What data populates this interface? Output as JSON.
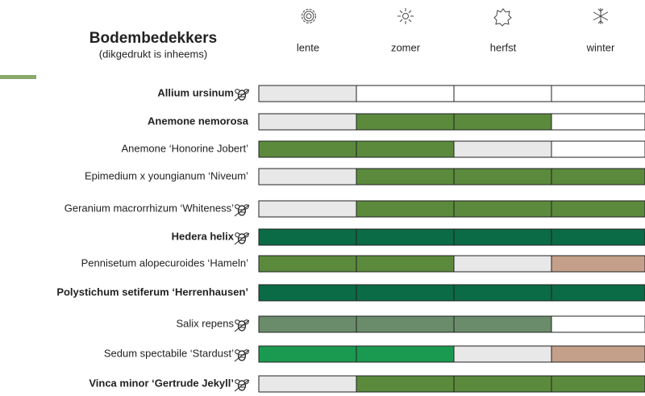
{
  "header": {
    "title": "Bodembedekkers",
    "subtitle": "(dikgedrukt is inheems)"
  },
  "seasons": [
    "lente",
    "zomer",
    "herfst",
    "winter"
  ],
  "rows": [
    {
      "name": "Allium ursinum",
      "bold": true,
      "bee": true,
      "cells": [
        "#e8e8e8",
        "#ffffff",
        "#ffffff",
        "#ffffff"
      ]
    },
    {
      "name": "Anemone nemorosa",
      "bold": true,
      "bee": false,
      "cells": [
        "#e8e8e8",
        "#5b8a3c",
        "#5b8a3c",
        "#ffffff"
      ]
    },
    {
      "name": "Anemone ‘Honorine Jobert’",
      "bold": false,
      "bee": false,
      "cells": [
        "#5b8a3c",
        "#5b8a3c",
        "#e8e8e8",
        "#ffffff"
      ]
    },
    {
      "name": "Epimedium x youngianum ‘Niveum’",
      "bold": false,
      "bee": false,
      "cells": [
        "#e8e8e8",
        "#5b8a3c",
        "#5b8a3c",
        "#5b8a3c"
      ]
    },
    {
      "name": "Geranium macrorrhizum ‘Whiteness’",
      "bold": false,
      "bee": true,
      "cells": [
        "#e8e8e8",
        "#5b8a3c",
        "#5b8a3c",
        "#5b8a3c"
      ]
    },
    {
      "name": "Hedera helix",
      "bold": true,
      "bee": true,
      "cells": [
        "#0b6b47",
        "#0b6b47",
        "#0b6b47",
        "#0b6b47"
      ]
    },
    {
      "name": "Pennisetum alopecuroides ‘Hameln’",
      "bold": false,
      "bee": false,
      "cells": [
        "#5b8a3c",
        "#5b8a3c",
        "#e8e8e8",
        "#c4a08a"
      ]
    },
    {
      "name": "Polystichum setiferum ‘Herrenhausen’",
      "bold": true,
      "bee": false,
      "cells": [
        "#0b6b47",
        "#0b6b47",
        "#0b6b47",
        "#0b6b47"
      ]
    },
    {
      "name": "Salix repens",
      "bold": false,
      "bee": true,
      "cells": [
        "#6b8c6b",
        "#6b8c6b",
        "#6b8c6b",
        "#ffffff"
      ]
    },
    {
      "name": "Sedum spectabile ‘Stardust’",
      "bold": false,
      "bee": true,
      "cells": [
        "#1a9a50",
        "#1a9a50",
        "#e8e8e8",
        "#c4a08a"
      ]
    },
    {
      "name": "Vinca minor ‘Gertrude Jekyll’",
      "bold": true,
      "bee": true,
      "cells": [
        "#e8e8e8",
        "#5b8a3c",
        "#5b8a3c",
        "#5b8a3c"
      ]
    }
  ]
}
